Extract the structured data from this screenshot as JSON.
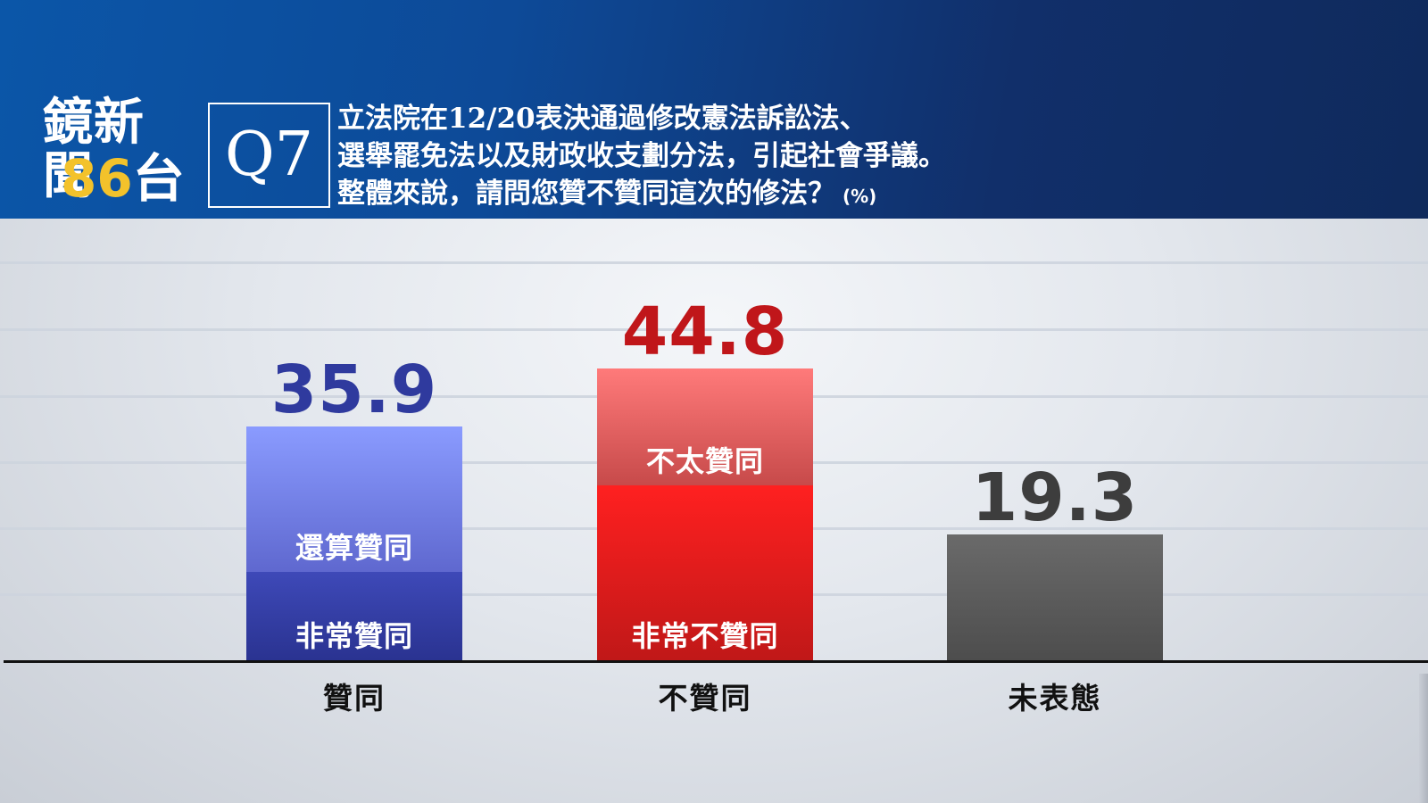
{
  "header": {
    "brand_name": "鏡新聞",
    "brand_number": "86",
    "brand_channel_suffix": "台",
    "question_id": "Q7",
    "question_lines": [
      "立法院在12/20表決通過修改憲法訴訟法、",
      "選舉罷免法以及財政收支劃分法，引起社會爭議。",
      "整體來說，請問您贊不贊同這次的修法？"
    ],
    "unit": "(%)"
  },
  "chart_data": {
    "type": "bar",
    "stacked": true,
    "categories": [
      "贊同",
      "不贊同",
      "未表態"
    ],
    "totals": [
      35.9,
      44.8,
      19.3
    ],
    "ylim": [
      0,
      50
    ],
    "grid": true,
    "segments": [
      [
        {
          "label": "非常贊同",
          "value": 13.5,
          "color_top": "#3e49b8",
          "color_bottom": "#2a3391"
        },
        {
          "label": "還算贊同",
          "value": 22.4,
          "color_top": "#8a9bff",
          "color_bottom": "#5f68cf"
        }
      ],
      [
        {
          "label": "非常不贊同",
          "value": 26.8,
          "color_top": "#ff2020",
          "color_bottom": "#c01818"
        },
        {
          "label": "不太贊同",
          "value": 18.0,
          "color_top": "#ff7a7a",
          "color_bottom": "#c74a4a"
        }
      ],
      [
        {
          "label": "",
          "value": 19.3,
          "color_top": "#6a6a6a",
          "color_bottom": "#4d4d4d"
        }
      ]
    ],
    "value_colors": [
      "#2f3a9e",
      "#c0161a",
      "#3d3d3d"
    ]
  }
}
